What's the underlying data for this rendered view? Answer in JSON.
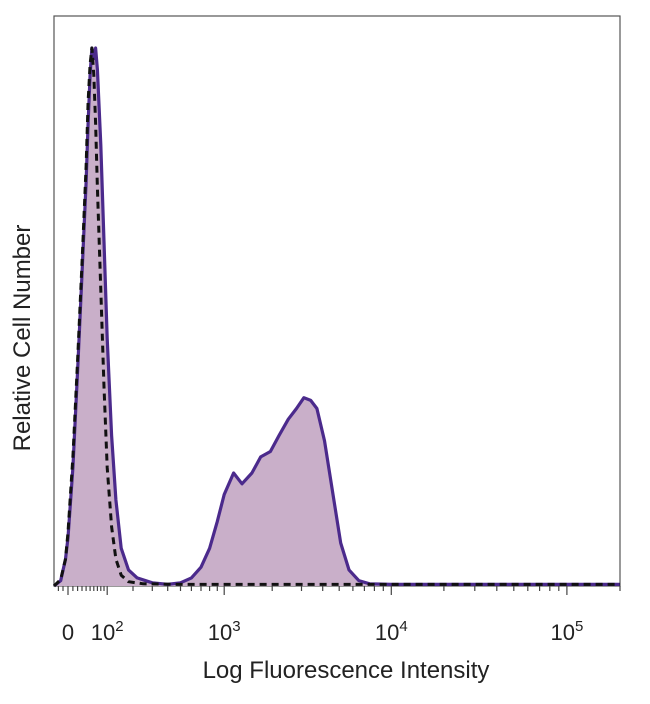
{
  "chart_data": {
    "type": "area",
    "title": "",
    "xlabel": "Log Fluorescence Intensity",
    "ylabel": "Relative Cell Number",
    "x_scale": "biexponential",
    "xlim": [
      -30,
      200000
    ],
    "ylim": [
      0,
      1
    ],
    "grid": false,
    "legend": "none",
    "x_ticks": [
      {
        "value": 0,
        "base": "0",
        "exp": ""
      },
      {
        "value": 100,
        "base": "10",
        "exp": "2"
      },
      {
        "value": 1000,
        "base": "10",
        "exp": "3"
      },
      {
        "value": 10000,
        "base": "10",
        "exp": "4"
      },
      {
        "value": 100000,
        "base": "10",
        "exp": "5"
      }
    ],
    "series": [
      {
        "style": "filled-solid",
        "color": "#4b2a8c",
        "fill": "#c9afc9",
        "points": [
          [
            -30,
            0.0
          ],
          [
            -15,
            0.01
          ],
          [
            -5,
            0.05
          ],
          [
            0,
            0.09
          ],
          [
            10,
            0.22
          ],
          [
            20,
            0.4
          ],
          [
            30,
            0.58
          ],
          [
            40,
            0.75
          ],
          [
            45,
            0.86
          ],
          [
            50,
            0.95
          ],
          [
            55,
            1.0
          ],
          [
            60,
            0.98
          ],
          [
            65,
            1.0
          ],
          [
            70,
            0.96
          ],
          [
            80,
            0.82
          ],
          [
            90,
            0.64
          ],
          [
            100,
            0.46
          ],
          [
            115,
            0.28
          ],
          [
            130,
            0.16
          ],
          [
            150,
            0.07
          ],
          [
            180,
            0.03
          ],
          [
            220,
            0.015
          ],
          [
            300,
            0.006
          ],
          [
            400,
            0.003
          ],
          [
            500,
            0.006
          ],
          [
            600,
            0.015
          ],
          [
            700,
            0.035
          ],
          [
            800,
            0.07
          ],
          [
            900,
            0.12
          ],
          [
            1000,
            0.17
          ],
          [
            1150,
            0.21
          ],
          [
            1300,
            0.19
          ],
          [
            1500,
            0.21
          ],
          [
            1700,
            0.24
          ],
          [
            1950,
            0.25
          ],
          [
            2200,
            0.28
          ],
          [
            2500,
            0.31
          ],
          [
            2800,
            0.33
          ],
          [
            3100,
            0.35
          ],
          [
            3400,
            0.345
          ],
          [
            3700,
            0.33
          ],
          [
            4100,
            0.27
          ],
          [
            4600,
            0.17
          ],
          [
            5100,
            0.08
          ],
          [
            5700,
            0.03
          ],
          [
            6500,
            0.01
          ],
          [
            7500,
            0.004
          ],
          [
            10000,
            0.003
          ],
          [
            30000,
            0.003
          ],
          [
            100000,
            0.003
          ],
          [
            200000,
            0.003
          ]
        ]
      },
      {
        "style": "dashed",
        "color": "#111111",
        "fill": "none",
        "points": [
          [
            -30,
            0.0
          ],
          [
            -15,
            0.012
          ],
          [
            -5,
            0.05
          ],
          [
            0,
            0.1
          ],
          [
            10,
            0.24
          ],
          [
            20,
            0.42
          ],
          [
            30,
            0.6
          ],
          [
            40,
            0.78
          ],
          [
            45,
            0.9
          ],
          [
            50,
            0.97
          ],
          [
            55,
            1.0
          ],
          [
            60,
            0.95
          ],
          [
            65,
            0.86
          ],
          [
            70,
            0.74
          ],
          [
            80,
            0.55
          ],
          [
            90,
            0.37
          ],
          [
            100,
            0.22
          ],
          [
            115,
            0.11
          ],
          [
            130,
            0.05
          ],
          [
            150,
            0.02
          ],
          [
            180,
            0.008
          ],
          [
            250,
            0.004
          ],
          [
            500,
            0.003
          ],
          [
            2000,
            0.003
          ],
          [
            10000,
            0.003
          ],
          [
            200000,
            0.003
          ]
        ]
      }
    ]
  }
}
